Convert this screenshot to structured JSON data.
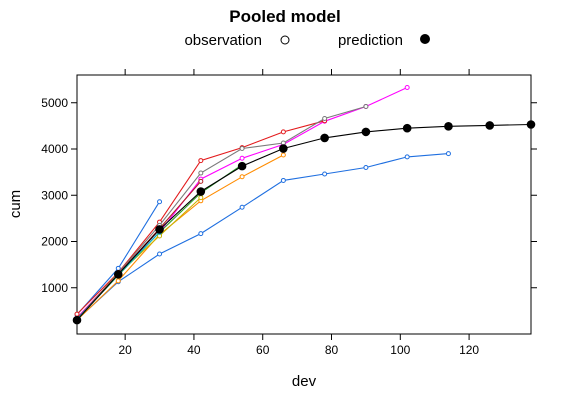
{
  "chart_data": {
    "type": "line",
    "title": "Pooled model",
    "xlabel": "dev",
    "ylabel": "cum",
    "xlim": [
      6,
      138
    ],
    "ylim": [
      0,
      5600
    ],
    "xticks": [
      20,
      40,
      60,
      80,
      100,
      120
    ],
    "yticks": [
      1000,
      2000,
      3000,
      4000,
      5000
    ],
    "grid": false,
    "legend": {
      "position": "top",
      "entries": [
        {
          "label": "observation",
          "marker": "open-circle"
        },
        {
          "label": "prediction",
          "marker": "filled-circle"
        }
      ]
    },
    "series": [
      {
        "kind": "observation",
        "color": "#ff00ff",
        "x": [
          6,
          18,
          30,
          42,
          54,
          66,
          78,
          90,
          102
        ],
        "y": [
          350,
          1300,
          2200,
          3350,
          3800,
          4100,
          4600,
          4920,
          5330
        ]
      },
      {
        "kind": "observation",
        "color": "#1f6fe0",
        "x": [
          6,
          18,
          30,
          42,
          54,
          66,
          78,
          90,
          102,
          114
        ],
        "y": [
          310,
          1130,
          1730,
          2170,
          2740,
          3320,
          3460,
          3600,
          3830,
          3900
        ]
      },
      {
        "kind": "observation",
        "color": "#1f6fe0",
        "x": [
          6,
          18,
          30
        ],
        "y": [
          420,
          1420,
          2860
        ]
      },
      {
        "kind": "observation",
        "color": "#ff8c00",
        "x": [
          6,
          18,
          30,
          42,
          54,
          66
        ],
        "y": [
          300,
          1150,
          2150,
          2880,
          3400,
          3870
        ]
      },
      {
        "kind": "observation",
        "color": "#e31a1c",
        "x": [
          6,
          18,
          30,
          42,
          54,
          66,
          78
        ],
        "y": [
          430,
          1330,
          2420,
          3750,
          4030,
          4370,
          4610
        ]
      },
      {
        "kind": "observation",
        "color": "#7a7a7a",
        "x": [
          6,
          18,
          30,
          42,
          54,
          66,
          78,
          90
        ],
        "y": [
          320,
          1320,
          2350,
          3480,
          4010,
          4130,
          4660,
          4920
        ]
      },
      {
        "kind": "observation",
        "color": "#b22222",
        "x": [
          6,
          18,
          30,
          42
        ],
        "y": [
          330,
          1300,
          2280,
          3300
        ]
      },
      {
        "kind": "observation",
        "color": "#c8b400",
        "x": [
          6,
          18,
          30,
          42
        ],
        "y": [
          300,
          1300,
          2120,
          2950
        ]
      },
      {
        "kind": "observation",
        "color": "#2ca02c",
        "x": [
          6,
          18,
          30,
          42,
          54
        ],
        "y": [
          320,
          1270,
          2200,
          3050,
          3660
        ]
      },
      {
        "kind": "observation",
        "color": "#00bcd4",
        "x": [
          6,
          18,
          30
        ],
        "y": [
          320,
          1280,
          2200
        ]
      },
      {
        "kind": "prediction",
        "color": "#000000",
        "x": [
          6,
          18,
          30,
          42,
          54,
          66,
          78,
          90,
          102,
          114,
          126,
          138
        ],
        "y": [
          300,
          1290,
          2260,
          3080,
          3630,
          4010,
          4240,
          4370,
          4450,
          4490,
          4510,
          4530
        ]
      }
    ]
  }
}
